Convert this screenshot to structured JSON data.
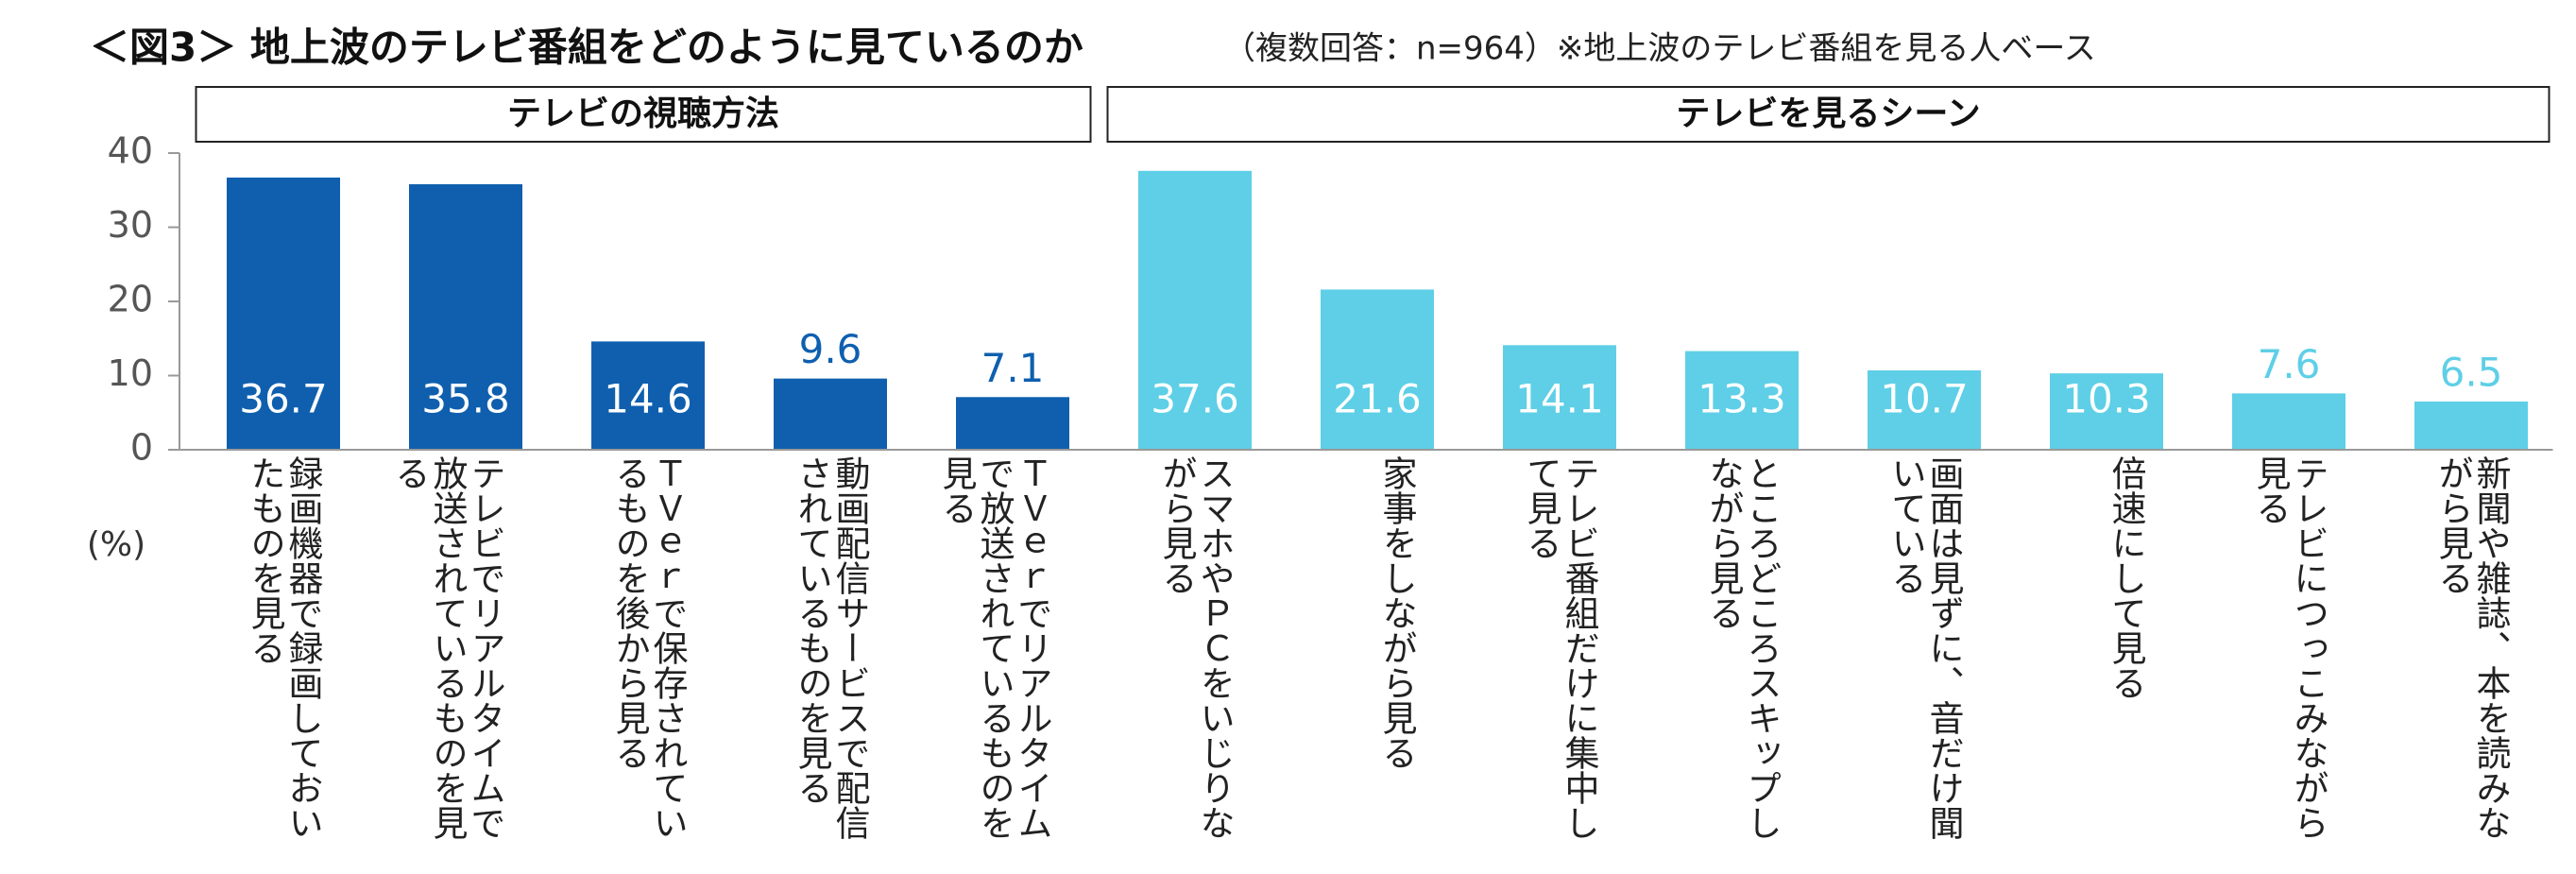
{
  "chart_data": {
    "type": "bar",
    "title": "＜図3＞ 地上波のテレビ番組をどのように見ているのか",
    "subtitle": "（複数回答：n=964）※地上波のテレビ番組を見る人ベース",
    "y_label": "(%)",
    "ylim": [
      0,
      40
    ],
    "yticks": [
      0,
      10,
      20,
      30,
      40
    ],
    "groups": [
      {
        "name": "テレビの視聴方法",
        "color": "#0f5fae",
        "categories": [
          "録画機器で録画しておいたものを見る",
          "テレビでリアルタイムで放送されているものを見る",
          "ＴＶｅｒで保存されているものを後から見る",
          "動画配信サービスで配信されているものを見る",
          "ＴＶｅｒでリアルタイムで放送されているものを見る"
        ],
        "values": [
          36.7,
          35.8,
          14.6,
          9.6,
          7.1
        ]
      },
      {
        "name": "テレビを見るシーン",
        "color": "#5ecfe6",
        "categories": [
          "スマホやＰＣをいじりながら見る",
          "家事をしながら見る",
          "テレビ番組だけに集中して見る",
          "ところどころスキップしながら見る",
          "画面は見ずに、音だけ聞いている",
          "倍速にして見る",
          "テレビにつっこみながら見る",
          "新聞や雑誌、本を読みながら見る"
        ],
        "values": [
          37.6,
          21.6,
          14.1,
          13.3,
          10.7,
          10.3,
          7.6,
          6.5
        ]
      }
    ]
  }
}
